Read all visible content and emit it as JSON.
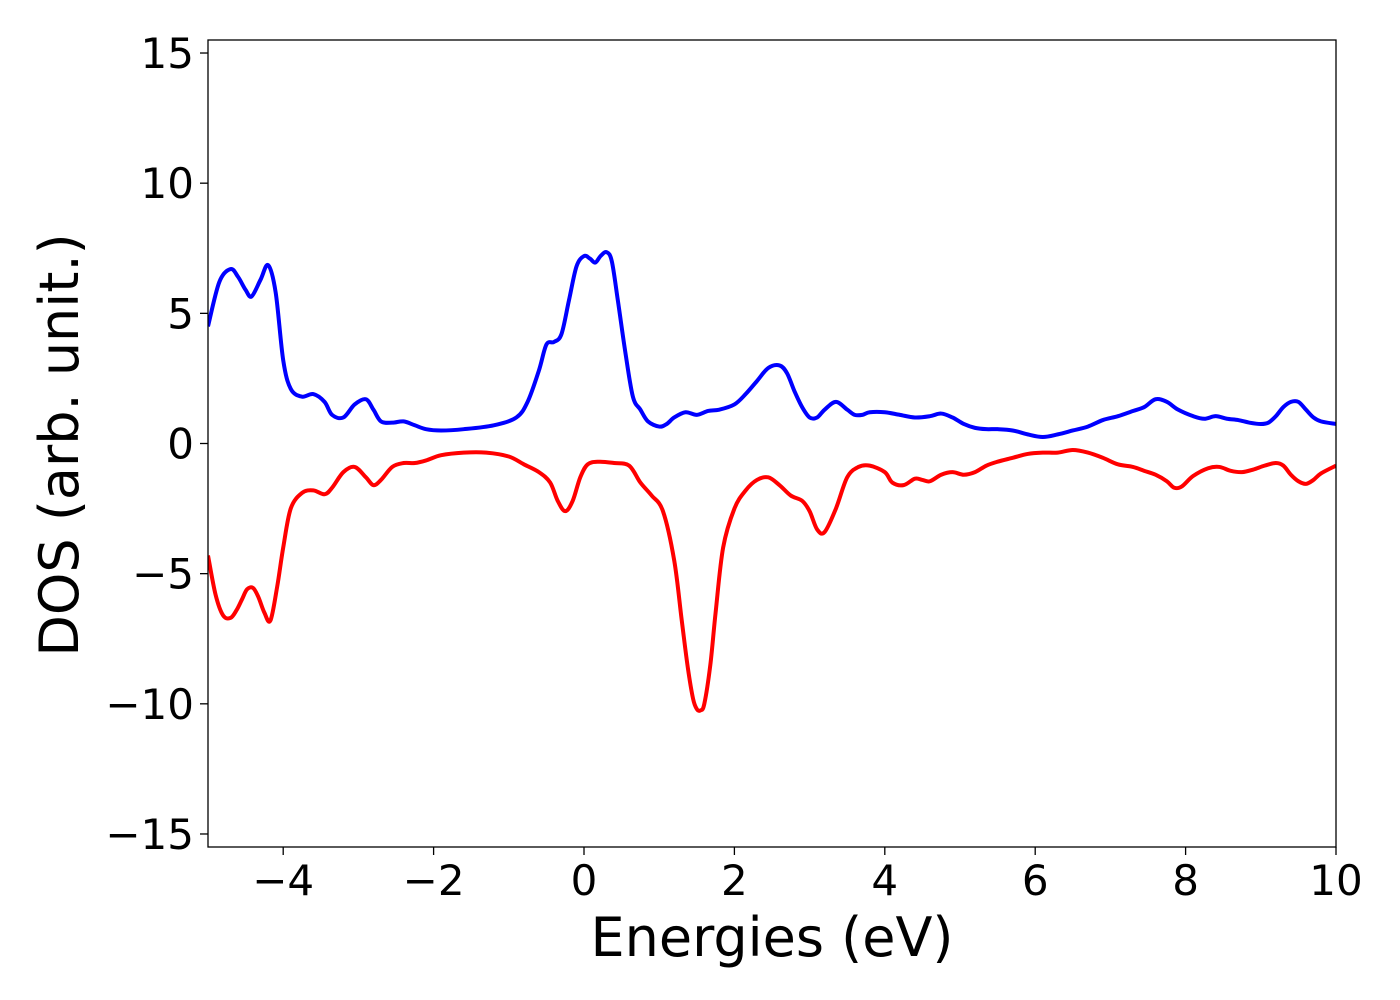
{
  "chart_data": {
    "type": "line",
    "xlabel": "Energies (eV)",
    "ylabel": "DOS (arb. unit.)",
    "xlim": [
      -5,
      10
    ],
    "ylim": [
      -15.5,
      15.5
    ],
    "xticks": [
      -4,
      -2,
      0,
      2,
      4,
      6,
      8,
      10
    ],
    "xtick_labels": [
      "−4",
      "−2",
      "0",
      "2",
      "4",
      "6",
      "8",
      "10"
    ],
    "yticks": [
      -15,
      -10,
      -5,
      0,
      5,
      10,
      15
    ],
    "ytick_labels": [
      "−15",
      "−10",
      "−5",
      "0",
      "5",
      "10",
      "15"
    ],
    "grid": false,
    "series": [
      {
        "color": "#0000ff",
        "x": [
          -5.0,
          -4.85,
          -4.7,
          -4.6,
          -4.5,
          -4.42,
          -4.3,
          -4.2,
          -4.1,
          -4.0,
          -3.9,
          -3.75,
          -3.6,
          -3.45,
          -3.35,
          -3.2,
          -3.05,
          -2.9,
          -2.8,
          -2.7,
          -2.55,
          -2.4,
          -2.25,
          -2.1,
          -1.9,
          -1.6,
          -1.2,
          -0.9,
          -0.75,
          -0.6,
          -0.5,
          -0.4,
          -0.3,
          -0.2,
          -0.1,
          0.0,
          0.08,
          0.15,
          0.22,
          0.3,
          0.37,
          0.45,
          0.55,
          0.65,
          0.75,
          0.85,
          1.0,
          1.1,
          1.2,
          1.35,
          1.5,
          1.65,
          1.8,
          2.0,
          2.15,
          2.3,
          2.45,
          2.6,
          2.7,
          2.8,
          2.9,
          3.0,
          3.1,
          3.2,
          3.35,
          3.5,
          3.6,
          3.7,
          3.8,
          4.0,
          4.2,
          4.4,
          4.6,
          4.75,
          4.9,
          5.05,
          5.2,
          5.35,
          5.5,
          5.7,
          5.9,
          6.1,
          6.3,
          6.5,
          6.7,
          6.9,
          7.1,
          7.3,
          7.45,
          7.6,
          7.75,
          7.9,
          8.1,
          8.25,
          8.4,
          8.55,
          8.7,
          8.85,
          9.0,
          9.1,
          9.2,
          9.3,
          9.4,
          9.5,
          9.6,
          9.7,
          9.8,
          10.0
        ],
        "y": [
          4.5,
          6.2,
          6.7,
          6.4,
          5.9,
          5.65,
          6.3,
          6.85,
          5.8,
          3.2,
          2.1,
          1.8,
          1.9,
          1.6,
          1.1,
          1.0,
          1.5,
          1.7,
          1.3,
          0.85,
          0.8,
          0.85,
          0.7,
          0.55,
          0.5,
          0.55,
          0.7,
          1.0,
          1.6,
          2.8,
          3.8,
          3.9,
          4.2,
          5.5,
          6.8,
          7.2,
          7.1,
          6.95,
          7.2,
          7.35,
          7.0,
          5.5,
          3.5,
          1.8,
          1.3,
          0.85,
          0.65,
          0.75,
          1.0,
          1.2,
          1.1,
          1.25,
          1.3,
          1.5,
          1.9,
          2.4,
          2.9,
          3.0,
          2.7,
          2.0,
          1.4,
          1.0,
          1.0,
          1.3,
          1.6,
          1.3,
          1.1,
          1.1,
          1.2,
          1.2,
          1.1,
          1.0,
          1.05,
          1.15,
          1.0,
          0.75,
          0.6,
          0.55,
          0.55,
          0.5,
          0.35,
          0.25,
          0.35,
          0.5,
          0.65,
          0.9,
          1.05,
          1.25,
          1.4,
          1.7,
          1.6,
          1.3,
          1.05,
          0.95,
          1.05,
          0.95,
          0.9,
          0.8,
          0.75,
          0.8,
          1.05,
          1.4,
          1.6,
          1.6,
          1.3,
          1.0,
          0.85,
          0.75
        ]
      },
      {
        "color": "#ff0000",
        "x": [
          -5.0,
          -4.9,
          -4.8,
          -4.7,
          -4.62,
          -4.55,
          -4.48,
          -4.4,
          -4.33,
          -4.25,
          -4.17,
          -4.08,
          -4.0,
          -3.9,
          -3.75,
          -3.6,
          -3.45,
          -3.35,
          -3.2,
          -3.05,
          -2.9,
          -2.8,
          -2.7,
          -2.55,
          -2.4,
          -2.25,
          -2.1,
          -1.9,
          -1.6,
          -1.3,
          -1.0,
          -0.8,
          -0.6,
          -0.45,
          -0.35,
          -0.25,
          -0.15,
          -0.05,
          0.05,
          0.2,
          0.4,
          0.6,
          0.75,
          0.9,
          1.05,
          1.2,
          1.3,
          1.38,
          1.45,
          1.5,
          1.55,
          1.6,
          1.68,
          1.75,
          1.85,
          2.0,
          2.15,
          2.3,
          2.45,
          2.6,
          2.75,
          2.9,
          3.0,
          3.1,
          3.2,
          3.35,
          3.5,
          3.65,
          3.8,
          4.0,
          4.1,
          4.25,
          4.4,
          4.5,
          4.6,
          4.75,
          4.9,
          5.05,
          5.2,
          5.35,
          5.5,
          5.7,
          5.9,
          6.1,
          6.3,
          6.5,
          6.7,
          6.9,
          7.1,
          7.3,
          7.45,
          7.6,
          7.75,
          7.85,
          7.95,
          8.1,
          8.3,
          8.45,
          8.6,
          8.75,
          8.9,
          9.05,
          9.2,
          9.3,
          9.4,
          9.5,
          9.6,
          9.7,
          9.8,
          10.0
        ],
        "y": [
          -4.3,
          -5.8,
          -6.6,
          -6.7,
          -6.4,
          -6.0,
          -5.6,
          -5.55,
          -5.9,
          -6.5,
          -6.8,
          -5.5,
          -4.0,
          -2.5,
          -1.9,
          -1.8,
          -1.95,
          -1.7,
          -1.1,
          -0.9,
          -1.3,
          -1.6,
          -1.4,
          -0.9,
          -0.75,
          -0.75,
          -0.65,
          -0.45,
          -0.35,
          -0.35,
          -0.5,
          -0.8,
          -1.1,
          -1.5,
          -2.2,
          -2.6,
          -2.2,
          -1.3,
          -0.8,
          -0.7,
          -0.75,
          -0.85,
          -1.5,
          -2.0,
          -2.6,
          -4.5,
          -6.8,
          -8.6,
          -9.8,
          -10.2,
          -10.25,
          -10.0,
          -8.5,
          -6.5,
          -4.0,
          -2.5,
          -1.8,
          -1.4,
          -1.3,
          -1.6,
          -2.0,
          -2.2,
          -2.6,
          -3.3,
          -3.4,
          -2.5,
          -1.3,
          -0.9,
          -0.85,
          -1.1,
          -1.5,
          -1.6,
          -1.35,
          -1.4,
          -1.45,
          -1.2,
          -1.1,
          -1.2,
          -1.1,
          -0.85,
          -0.7,
          -0.55,
          -0.4,
          -0.35,
          -0.35,
          -0.25,
          -0.35,
          -0.55,
          -0.8,
          -0.9,
          -1.05,
          -1.2,
          -1.45,
          -1.7,
          -1.65,
          -1.25,
          -0.95,
          -0.9,
          -1.05,
          -1.1,
          -1.0,
          -0.85,
          -0.75,
          -0.85,
          -1.2,
          -1.45,
          -1.55,
          -1.4,
          -1.15,
          -0.85
        ]
      }
    ]
  }
}
